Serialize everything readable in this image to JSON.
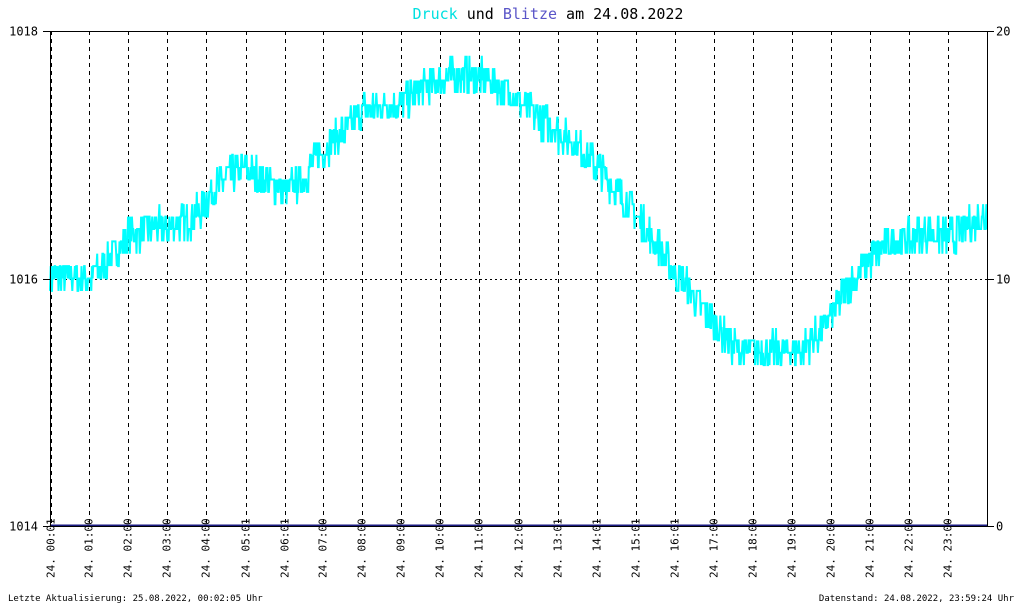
{
  "title": {
    "part1": "Druck",
    "part2": " und ",
    "part3": "Blitze",
    "part4": " am 24.08.2022"
  },
  "footer": {
    "left": "Letzte Aktualisierung: 25.08.2022, 00:02:05 Uhr",
    "right": "Datenstand: 24.08.2022, 23:59:24 Uhr"
  },
  "colors": {
    "background": "#ffffff",
    "pressure": "#00ffff",
    "lightning": "#1a1a80",
    "title_pressure": "#00e0e0",
    "title_lightning": "#5a55c8",
    "grid": "#000000",
    "frame": "#000000"
  },
  "chart_data": {
    "type": "line",
    "grid": true,
    "y_left": {
      "ylim": [
        1014,
        1018
      ],
      "ticks": [
        "1014",
        "1016",
        "1018"
      ]
    },
    "y_right": {
      "ylim": [
        0,
        20
      ],
      "ticks": [
        "0",
        "10",
        "20"
      ]
    },
    "x_range_hours": [
      0,
      24
    ],
    "x_ticks": [
      {
        "h": 0.02,
        "label": "24. 00:01"
      },
      {
        "h": 1,
        "label": "24. 01:00"
      },
      {
        "h": 2,
        "label": "24. 02:00"
      },
      {
        "h": 3,
        "label": "24. 03:00"
      },
      {
        "h": 4,
        "label": "24. 04:00"
      },
      {
        "h": 5.02,
        "label": "24. 05:01"
      },
      {
        "h": 6.02,
        "label": "24. 06:01"
      },
      {
        "h": 7,
        "label": "24. 07:00"
      },
      {
        "h": 8,
        "label": "24. 08:00"
      },
      {
        "h": 9,
        "label": "24. 09:00"
      },
      {
        "h": 10,
        "label": "24. 10:00"
      },
      {
        "h": 11,
        "label": "24. 11:00"
      },
      {
        "h": 12,
        "label": "24. 12:00"
      },
      {
        "h": 13.02,
        "label": "24. 13:01"
      },
      {
        "h": 14.02,
        "label": "24. 14:01"
      },
      {
        "h": 15.02,
        "label": "24. 15:01"
      },
      {
        "h": 16.02,
        "label": "24. 16:01"
      },
      {
        "h": 17,
        "label": "24. 17:00"
      },
      {
        "h": 18,
        "label": "24. 18:00"
      },
      {
        "h": 19,
        "label": "24. 19:00"
      },
      {
        "h": 20,
        "label": "24. 20:00"
      },
      {
        "h": 21,
        "label": "24. 21:00"
      },
      {
        "h": 22,
        "label": "24. 22:00"
      },
      {
        "h": 23,
        "label": "24. 23:00"
      }
    ],
    "series": [
      {
        "name": "Druck",
        "axis": "left",
        "x": [
          0,
          0.5,
          1,
          1.5,
          2,
          2.5,
          3,
          3.5,
          4,
          4.5,
          5,
          5.5,
          6,
          6.5,
          7,
          7.5,
          8,
          8.5,
          9,
          9.5,
          10,
          10.5,
          11,
          11.5,
          12,
          12.5,
          13,
          13.5,
          14,
          14.5,
          15,
          15.5,
          16,
          16.5,
          17,
          17.5,
          18,
          18.5,
          19,
          19.5,
          20,
          20.5,
          21,
          21.5,
          22,
          22.5,
          23,
          23.5,
          24
        ],
        "values": [
          1016.0,
          1016.02,
          1016.0,
          1016.15,
          1016.35,
          1016.4,
          1016.42,
          1016.45,
          1016.62,
          1016.82,
          1016.88,
          1016.8,
          1016.7,
          1016.8,
          1017.05,
          1017.18,
          1017.35,
          1017.4,
          1017.42,
          1017.52,
          1017.6,
          1017.65,
          1017.62,
          1017.55,
          1017.45,
          1017.3,
          1017.18,
          1017.08,
          1016.9,
          1016.72,
          1016.52,
          1016.3,
          1016.05,
          1015.85,
          1015.65,
          1015.45,
          1015.4,
          1015.42,
          1015.4,
          1015.48,
          1015.7,
          1015.95,
          1016.15,
          1016.28,
          1016.32,
          1016.38,
          1016.32,
          1016.42,
          1016.52
        ]
      },
      {
        "name": "Blitze",
        "axis": "right",
        "x": [
          0,
          24
        ],
        "values": [
          0,
          0
        ]
      }
    ]
  }
}
